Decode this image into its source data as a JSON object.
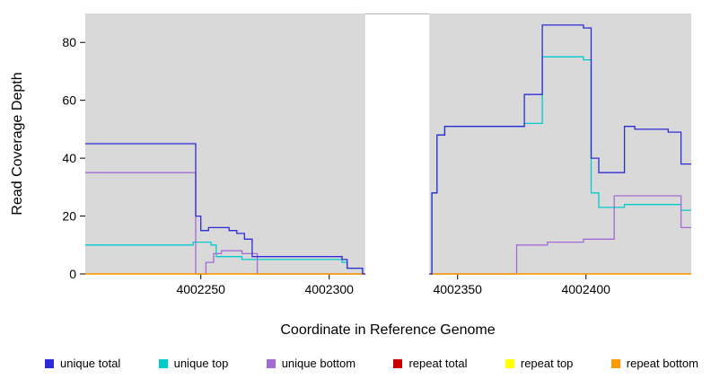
{
  "figure": {
    "background": "#ffffff"
  },
  "chart_data": {
    "type": "line",
    "step": true,
    "title": "",
    "xlabel": "Coordinate in Reference Genome",
    "ylabel": "Read Coverage Depth",
    "xlim": [
      4002205,
      4002441
    ],
    "ylim": [
      0,
      90
    ],
    "x_ticks": [
      4002250,
      4002300,
      4002350,
      4002400
    ],
    "y_ticks": [
      0,
      20,
      40,
      60,
      80
    ],
    "plot_bg": "#d9d9d9",
    "grid": false,
    "legend_position": "bottom",
    "masked_region": {
      "from": 4002314,
      "to": 4002339
    },
    "series": [
      {
        "name": "unique total",
        "color": "#2c2cd6",
        "segments": [
          [
            [
              4002205,
              45
            ],
            [
              4002247,
              45
            ],
            [
              4002248,
              20
            ],
            [
              4002250,
              15
            ],
            [
              4002253,
              16
            ],
            [
              4002258,
              16
            ],
            [
              4002261,
              15
            ],
            [
              4002264,
              14
            ],
            [
              4002267,
              12
            ],
            [
              4002270,
              6
            ],
            [
              4002302,
              6
            ],
            [
              4002305,
              5
            ],
            [
              4002307,
              2
            ],
            [
              4002312,
              2
            ],
            [
              4002313,
              0
            ],
            [
              4002314,
              0
            ]
          ],
          [
            [
              4002339,
              0
            ],
            [
              4002340,
              28
            ],
            [
              4002342,
              48
            ],
            [
              4002345,
              51
            ],
            [
              4002374,
              51
            ],
            [
              4002376,
              62
            ],
            [
              4002382,
              62
            ],
            [
              4002383,
              86
            ],
            [
              4002398,
              86
            ],
            [
              4002399,
              85
            ],
            [
              4002401,
              85
            ],
            [
              4002402,
              40
            ],
            [
              4002404,
              40
            ],
            [
              4002405,
              35
            ],
            [
              4002414,
              35
            ],
            [
              4002415,
              51
            ],
            [
              4002418,
              51
            ],
            [
              4002419,
              50
            ],
            [
              4002431,
              50
            ],
            [
              4002432,
              49
            ],
            [
              4002436,
              49
            ],
            [
              4002437,
              38
            ],
            [
              4002441,
              38
            ]
          ]
        ]
      },
      {
        "name": "unique top",
        "color": "#00cccc",
        "segments": [
          [
            [
              4002205,
              10
            ],
            [
              4002245,
              10
            ],
            [
              4002247,
              11
            ],
            [
              4002252,
              11
            ],
            [
              4002254,
              10
            ],
            [
              4002256,
              6
            ],
            [
              4002262,
              6
            ],
            [
              4002266,
              5
            ],
            [
              4002270,
              5
            ],
            [
              4002302,
              5
            ],
            [
              4002305,
              4
            ],
            [
              4002307,
              2
            ],
            [
              4002312,
              2
            ],
            [
              4002313,
              0
            ],
            [
              4002314,
              0
            ]
          ],
          [
            [
              4002339,
              0
            ],
            [
              4002340,
              28
            ],
            [
              4002342,
              48
            ],
            [
              4002345,
              51
            ],
            [
              4002374,
              51
            ],
            [
              4002376,
              52
            ],
            [
              4002382,
              52
            ],
            [
              4002383,
              75
            ],
            [
              4002398,
              75
            ],
            [
              4002399,
              74
            ],
            [
              4002401,
              74
            ],
            [
              4002402,
              28
            ],
            [
              4002404,
              28
            ],
            [
              4002405,
              23
            ],
            [
              4002414,
              23
            ],
            [
              4002415,
              24
            ],
            [
              4002436,
              24
            ],
            [
              4002437,
              22
            ],
            [
              4002441,
              22
            ]
          ]
        ]
      },
      {
        "name": "unique bottom",
        "color": "#a36bd6",
        "segments": [
          [
            [
              4002205,
              35
            ],
            [
              4002247,
              35
            ],
            [
              4002248,
              0
            ],
            [
              4002251,
              0
            ],
            [
              4002252,
              4
            ],
            [
              4002255,
              7
            ],
            [
              4002258,
              8
            ],
            [
              4002263,
              8
            ],
            [
              4002266,
              7
            ],
            [
              4002270,
              7
            ],
            [
              4002272,
              0
            ],
            [
              4002314,
              0
            ]
          ],
          [
            [
              4002339,
              0
            ],
            [
              4002372,
              0
            ],
            [
              4002373,
              10
            ],
            [
              4002384,
              10
            ],
            [
              4002385,
              11
            ],
            [
              4002398,
              11
            ],
            [
              4002399,
              12
            ],
            [
              4002409,
              12
            ],
            [
              4002411,
              27
            ],
            [
              4002431,
              27
            ],
            [
              4002436,
              27
            ],
            [
              4002437,
              16
            ],
            [
              4002441,
              16
            ]
          ]
        ]
      },
      {
        "name": "repeat total",
        "color": "#cc0000",
        "segments": [
          [
            [
              4002205,
              0
            ],
            [
              4002314,
              0
            ]
          ],
          [
            [
              4002339,
              0
            ],
            [
              4002441,
              0
            ]
          ]
        ]
      },
      {
        "name": "repeat top",
        "color": "#ffff00",
        "segments": [
          [
            [
              4002205,
              0
            ],
            [
              4002314,
              0
            ]
          ],
          [
            [
              4002339,
              0
            ],
            [
              4002441,
              0
            ]
          ]
        ]
      },
      {
        "name": "repeat bottom",
        "color": "#ff9900",
        "segments": [
          [
            [
              4002205,
              0
            ],
            [
              4002314,
              0
            ]
          ],
          [
            [
              4002339,
              0
            ],
            [
              4002441,
              0
            ]
          ]
        ]
      }
    ]
  }
}
